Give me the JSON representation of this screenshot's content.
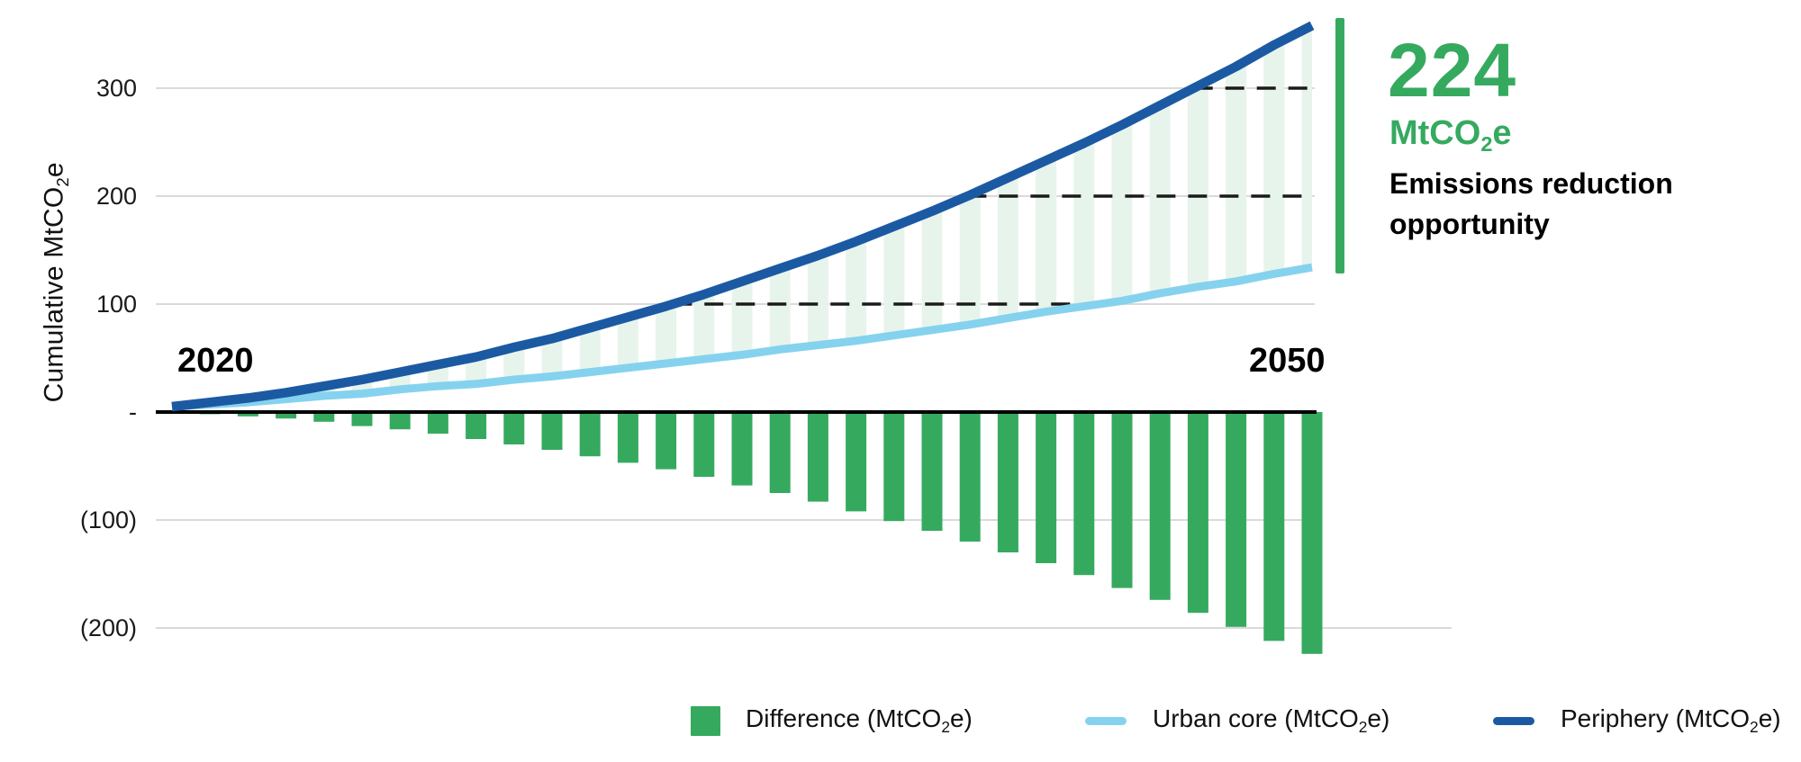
{
  "y_axis": {
    "title_pre": "Cumulative MtCO",
    "title_sub": "2",
    "title_post": "e",
    "tick_labels": [
      "300",
      "200",
      "100",
      "-",
      "(100)",
      "(200)"
    ]
  },
  "x_axis": {
    "start_label": "2020",
    "end_label": "2050"
  },
  "annotation": {
    "value": "224",
    "unit_pre": "MtCO",
    "unit_sub": "2",
    "unit_post": "e",
    "line1": "Emissions reduction",
    "line2": "opportunity"
  },
  "legend": {
    "items": [
      {
        "label_pre": "Difference (MtCO",
        "label_sub": "2",
        "label_post": "e)",
        "swatch": "square",
        "color": "#35AA5F"
      },
      {
        "label_pre": "Urban core (MtCO",
        "label_sub": "2",
        "label_post": "e)",
        "swatch": "line",
        "color": "#85D2EE"
      },
      {
        "label_pre": "Periphery (MtCO",
        "label_sub": "2",
        "label_post": "e)",
        "swatch": "line",
        "color": "#1B5AA3"
      }
    ]
  },
  "colors": {
    "difference_green": "#35AA5F",
    "stripe_green": "#E7F4EC",
    "urban_core_blue": "#85D2EE",
    "periphery_blue": "#1B5AA3",
    "gridline_gray": "#DADADA",
    "axis_black": "#000000",
    "dash_black": "#1a1a1a",
    "highlight_green": "#35AA5F"
  },
  "chart_data": {
    "type": "combo",
    "title": "",
    "xlabel": "",
    "ylabel": "Cumulative MtCO2e",
    "x_range": [
      2020,
      2050
    ],
    "ylim": [
      -240,
      370
    ],
    "yticks": [
      300,
      200,
      100,
      0,
      -100,
      -200
    ],
    "ytick_display": [
      "300",
      "200",
      "100",
      "-",
      "(100)",
      "(200)"
    ],
    "grid": true,
    "legend_position": "bottom",
    "dashed_reference_levels": [
      100,
      200,
      300
    ],
    "highlight": {
      "value": 224,
      "unit": "MtCO2e",
      "label": "Emissions reduction opportunity"
    },
    "years": [
      2020,
      2021,
      2022,
      2023,
      2024,
      2025,
      2026,
      2027,
      2028,
      2029,
      2030,
      2031,
      2032,
      2033,
      2034,
      2035,
      2036,
      2037,
      2038,
      2039,
      2040,
      2041,
      2042,
      2043,
      2044,
      2045,
      2046,
      2047,
      2048,
      2049,
      2050
    ],
    "series": [
      {
        "name": "Difference (MtCO2e)",
        "type": "bar",
        "color": "#35AA5F",
        "years": [
          2021,
          2022,
          2023,
          2024,
          2025,
          2026,
          2027,
          2028,
          2029,
          2030,
          2031,
          2032,
          2033,
          2034,
          2035,
          2036,
          2037,
          2038,
          2039,
          2040,
          2041,
          2042,
          2043,
          2044,
          2045,
          2046,
          2047,
          2048,
          2049,
          2050
        ],
        "values": [
          -2,
          -4,
          -6,
          -9,
          -13,
          -16,
          -20,
          -25,
          -30,
          -35,
          -41,
          -47,
          -53,
          -60,
          -68,
          -75,
          -83,
          -92,
          -101,
          -110,
          -120,
          -130,
          -140,
          -151,
          -163,
          -174,
          -186,
          -199,
          -212,
          -224
        ]
      },
      {
        "name": "Urban core (MtCO2e)",
        "type": "line",
        "color": "#85D2EE",
        "values": [
          5,
          7,
          9,
          12,
          15,
          17,
          21,
          24,
          26,
          30,
          33,
          37,
          41,
          45,
          49,
          53,
          58,
          62,
          66,
          71,
          76,
          81,
          87,
          93,
          98,
          103,
          110,
          116,
          121,
          128,
          134
        ]
      },
      {
        "name": "Periphery (MtCO2e)",
        "type": "line",
        "color": "#1B5AA3",
        "values": [
          5,
          9,
          13,
          18,
          24,
          30,
          37,
          44,
          51,
          60,
          68,
          78,
          88,
          98,
          109,
          121,
          133,
          145,
          158,
          172,
          186,
          201,
          217,
          233,
          249,
          266,
          284,
          302,
          320,
          340,
          358
        ]
      }
    ]
  }
}
